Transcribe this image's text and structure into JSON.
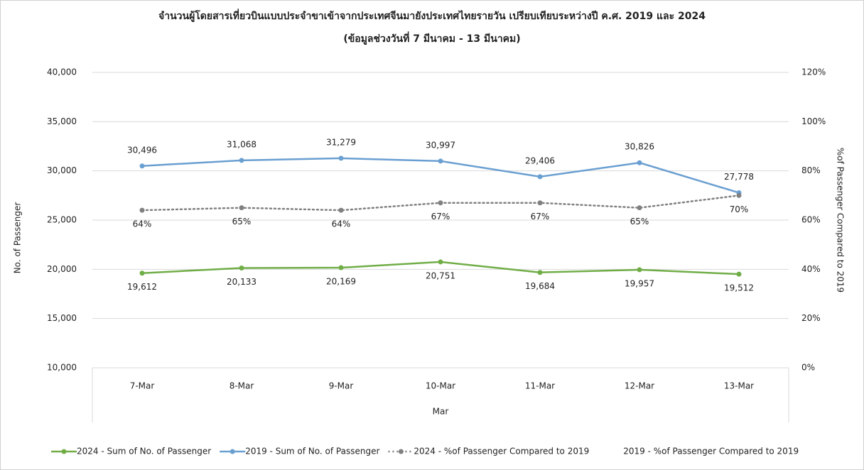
{
  "chart_data": {
    "type": "line",
    "title": "จำนวนผู้โดยสารเที่ยวบินแบบประจำขาเข้าจากประเทศจีนมายังประเทศไทยรายวัน เปรียบเทียบระหว่างปี ค.ศ. 2019 และ 2024",
    "subtitle": "(ข้อมูลช่วงวันที่ 7 มีนาคม - 13 มีนาคม)",
    "x_label": "Mar",
    "y_label": "No. of Passenger",
    "y2_label": "%of Passenger Compared to 2019",
    "categories": [
      "7-Mar",
      "8-Mar",
      "9-Mar",
      "10-Mar",
      "11-Mar",
      "12-Mar",
      "13-Mar"
    ],
    "ylim": [
      10000,
      40000
    ],
    "yticks": [
      {
        "value": 10000,
        "label": "10,000"
      },
      {
        "value": 15000,
        "label": "15,000"
      },
      {
        "value": 20000,
        "label": "20,000"
      },
      {
        "value": 25000,
        "label": "25,000"
      },
      {
        "value": 30000,
        "label": "30,000"
      },
      {
        "value": 35000,
        "label": "35,000"
      },
      {
        "value": 40000,
        "label": "40,000"
      }
    ],
    "y2lim": [
      0,
      120
    ],
    "y2ticks": [
      {
        "value": 0,
        "label": "0%"
      },
      {
        "value": 20,
        "label": "20%"
      },
      {
        "value": 40,
        "label": "40%"
      },
      {
        "value": 60,
        "label": "60%"
      },
      {
        "value": 80,
        "label": "80%"
      },
      {
        "value": 100,
        "label": "100%"
      },
      {
        "value": 120,
        "label": "120%"
      }
    ],
    "grid": true,
    "legend": "bottom",
    "series": [
      {
        "name": "2024 - Sum of No. of Passenger",
        "color": "#70ad47",
        "values": [
          19612,
          20133,
          20169,
          20751,
          19684,
          19957,
          19512
        ],
        "value_labels": [
          "19,612",
          "20,133",
          "20,169",
          "20,751",
          "19,684",
          "19,957",
          "19,512"
        ]
      },
      {
        "name": "2019 - Sum of No. of Passenger",
        "color": "#6a9fd1",
        "values": [
          30496,
          31068,
          31279,
          30997,
          29406,
          30826,
          27778
        ],
        "value_labels": [
          "30,496",
          "31,068",
          "31,279",
          "30,997",
          "29,406",
          "30,826",
          "27,778"
        ]
      },
      {
        "name": "2024 - %of Passenger Compared to 2019",
        "color": "#808080",
        "axis": "y2",
        "dashed": true,
        "values": [
          64,
          65,
          64,
          67,
          67,
          65,
          70
        ],
        "value_labels": [
          "64%",
          "65%",
          "64%",
          "67%",
          "67%",
          "65%",
          "70%"
        ]
      },
      {
        "name": "2019 - %of Passenger Compared to 2019",
        "axis": "y2",
        "values": [
          null,
          null,
          null,
          null,
          null,
          null,
          null
        ]
      }
    ]
  }
}
